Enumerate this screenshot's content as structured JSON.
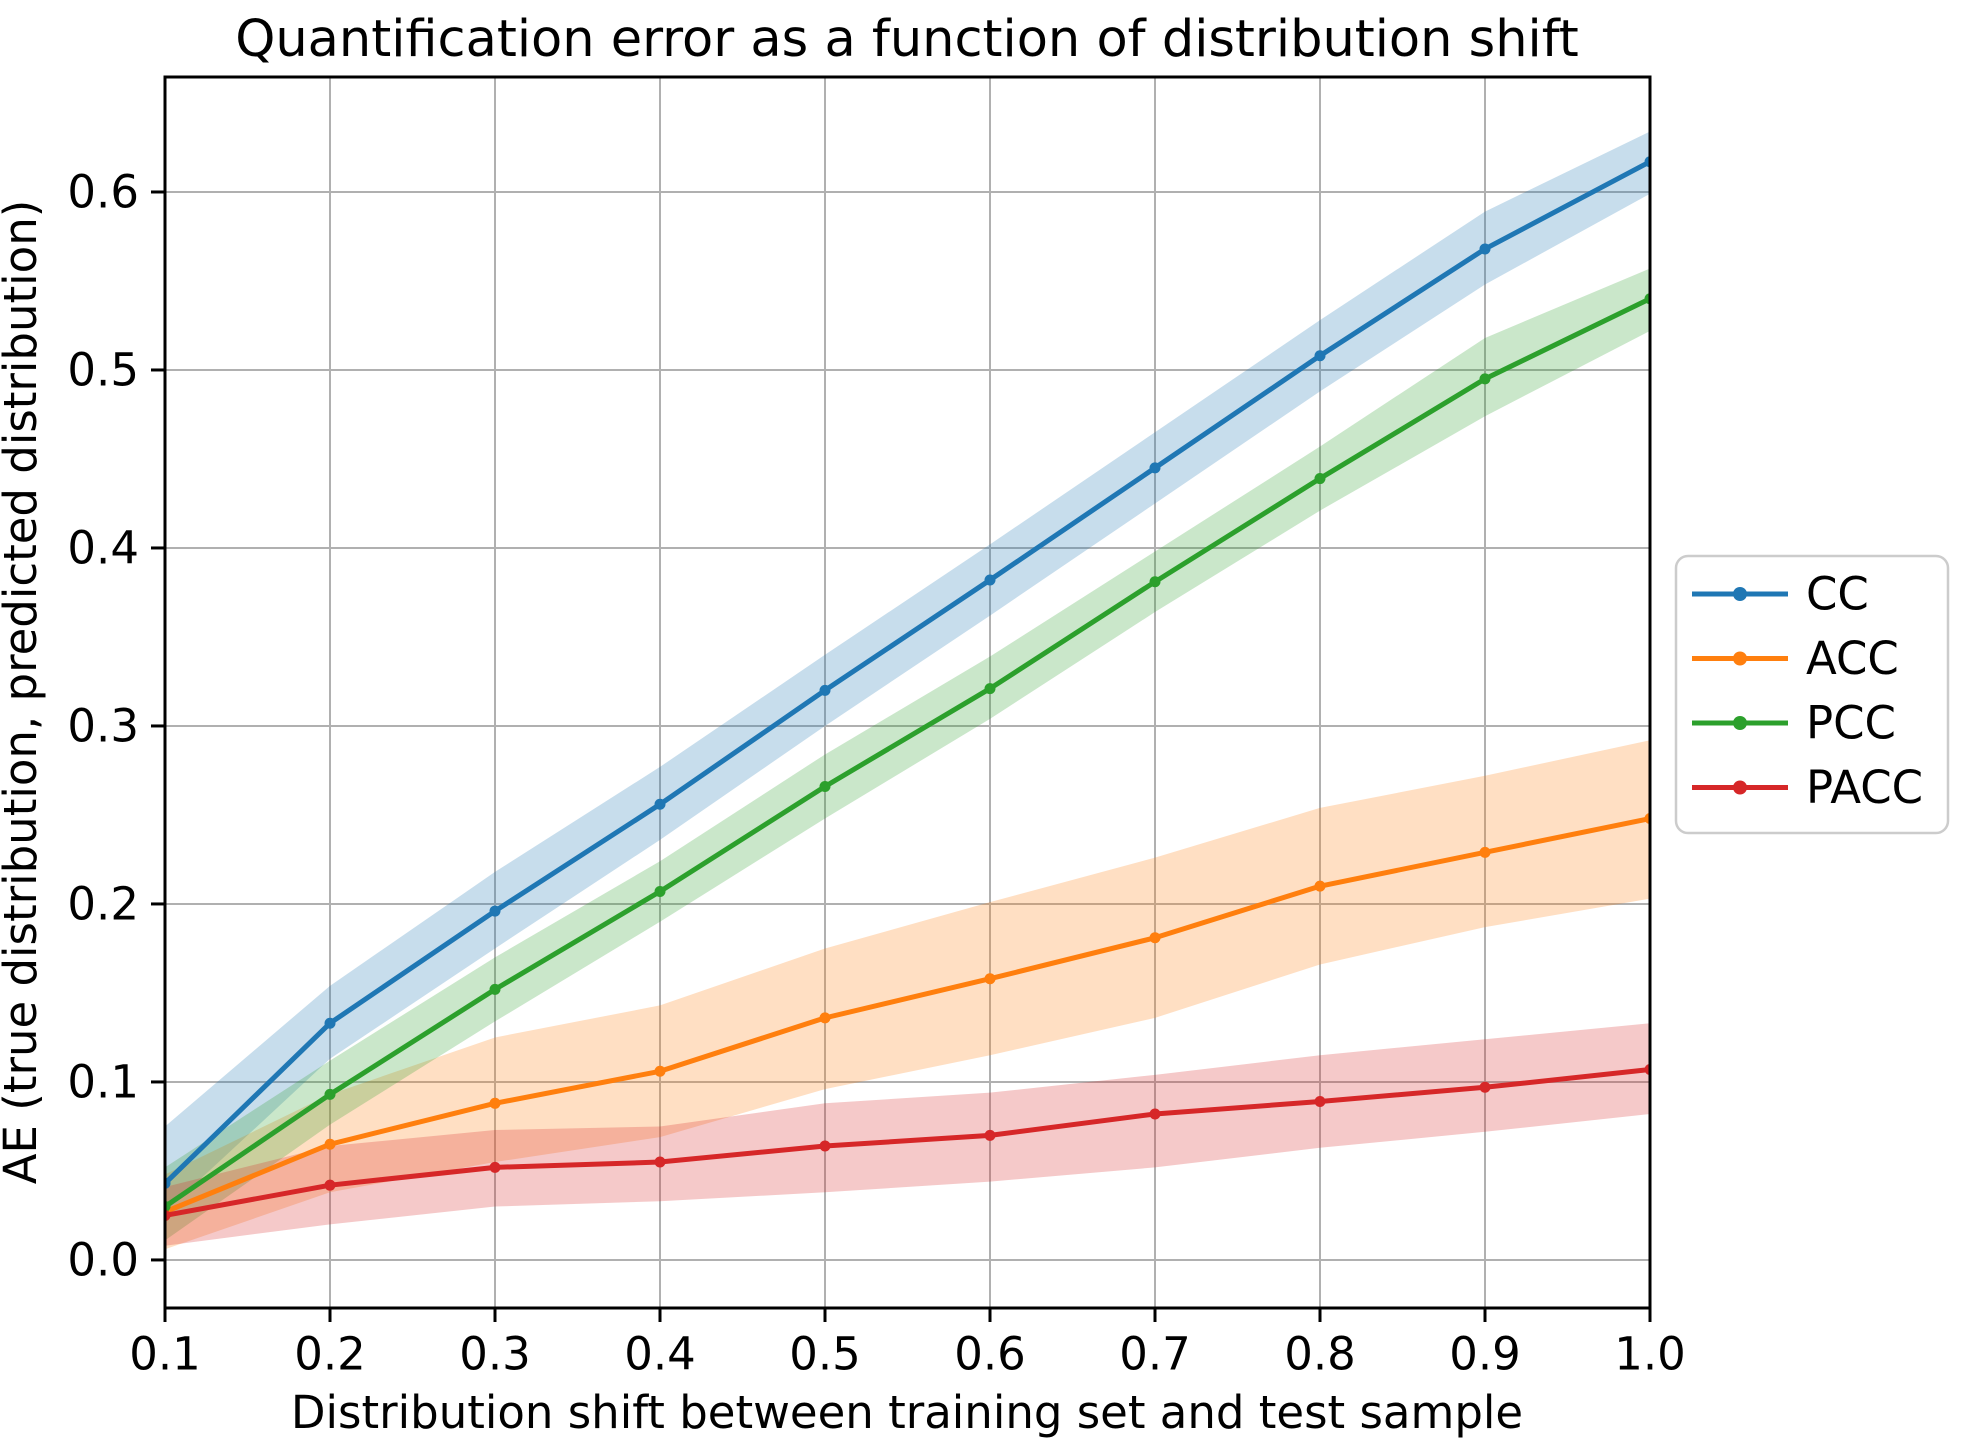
{
  "chart_data": {
    "type": "line",
    "title": "Quantification error as a function of distribution shift",
    "xlabel": "Distribution shift between training set and test sample",
    "ylabel": "AE (true distribution, predicted distribution)",
    "x": [
      0.1,
      0.2,
      0.3,
      0.4,
      0.5,
      0.6,
      0.7,
      0.8,
      0.9,
      1.0
    ],
    "x_tick_labels": [
      "0.1",
      "0.2",
      "0.3",
      "0.4",
      "0.5",
      "0.6",
      "0.7",
      "0.8",
      "0.9",
      "1.0"
    ],
    "y_ticks": [
      0.0,
      0.1,
      0.2,
      0.3,
      0.4,
      0.5,
      0.6
    ],
    "y_tick_labels": [
      "0.0",
      "0.1",
      "0.2",
      "0.3",
      "0.4",
      "0.5",
      "0.6"
    ],
    "xlim": [
      0.1,
      1.0
    ],
    "ylim": [
      -0.027,
      0.6646
    ],
    "grid": true,
    "legend_position": "center right, outside axes",
    "band_opacity": 0.25,
    "series": [
      {
        "name": "CC",
        "color": "#1f77b4",
        "values": [
          0.043,
          0.133,
          0.196,
          0.256,
          0.32,
          0.382,
          0.445,
          0.508,
          0.568,
          0.617
        ],
        "band_upper": [
          0.075,
          0.154,
          0.218,
          0.277,
          0.34,
          0.402,
          0.465,
          0.528,
          0.589,
          0.634
        ],
        "band_lower": [
          0.027,
          0.113,
          0.175,
          0.236,
          0.3,
          0.362,
          0.425,
          0.488,
          0.548,
          0.599
        ]
      },
      {
        "name": "ACC",
        "color": "#ff7f0e",
        "values": [
          0.027,
          0.065,
          0.088,
          0.106,
          0.136,
          0.158,
          0.181,
          0.21,
          0.229,
          0.248
        ],
        "band_upper": [
          0.048,
          0.093,
          0.125,
          0.143,
          0.175,
          0.201,
          0.226,
          0.254,
          0.272,
          0.292
        ],
        "band_lower": [
          0.006,
          0.038,
          0.055,
          0.069,
          0.096,
          0.115,
          0.136,
          0.166,
          0.187,
          0.203
        ]
      },
      {
        "name": "PCC",
        "color": "#2ca02c",
        "values": [
          0.03,
          0.093,
          0.152,
          0.207,
          0.266,
          0.321,
          0.381,
          0.439,
          0.495,
          0.54
        ],
        "band_upper": [
          0.052,
          0.112,
          0.17,
          0.224,
          0.284,
          0.339,
          0.398,
          0.457,
          0.518,
          0.557
        ],
        "band_lower": [
          0.011,
          0.076,
          0.134,
          0.19,
          0.248,
          0.304,
          0.364,
          0.421,
          0.474,
          0.522
        ]
      },
      {
        "name": "PACC",
        "color": "#d62728",
        "values": [
          0.025,
          0.042,
          0.052,
          0.055,
          0.064,
          0.07,
          0.082,
          0.089,
          0.097,
          0.107
        ],
        "band_upper": [
          0.041,
          0.064,
          0.073,
          0.075,
          0.088,
          0.094,
          0.104,
          0.115,
          0.124,
          0.133
        ],
        "band_lower": [
          0.008,
          0.02,
          0.03,
          0.033,
          0.038,
          0.044,
          0.052,
          0.063,
          0.072,
          0.082
        ]
      }
    ],
    "styles": {
      "grid_color": "#b0b0b0",
      "axis_color": "#000000",
      "background": "#ffffff",
      "legend_border_color": "#cccccc"
    }
  }
}
